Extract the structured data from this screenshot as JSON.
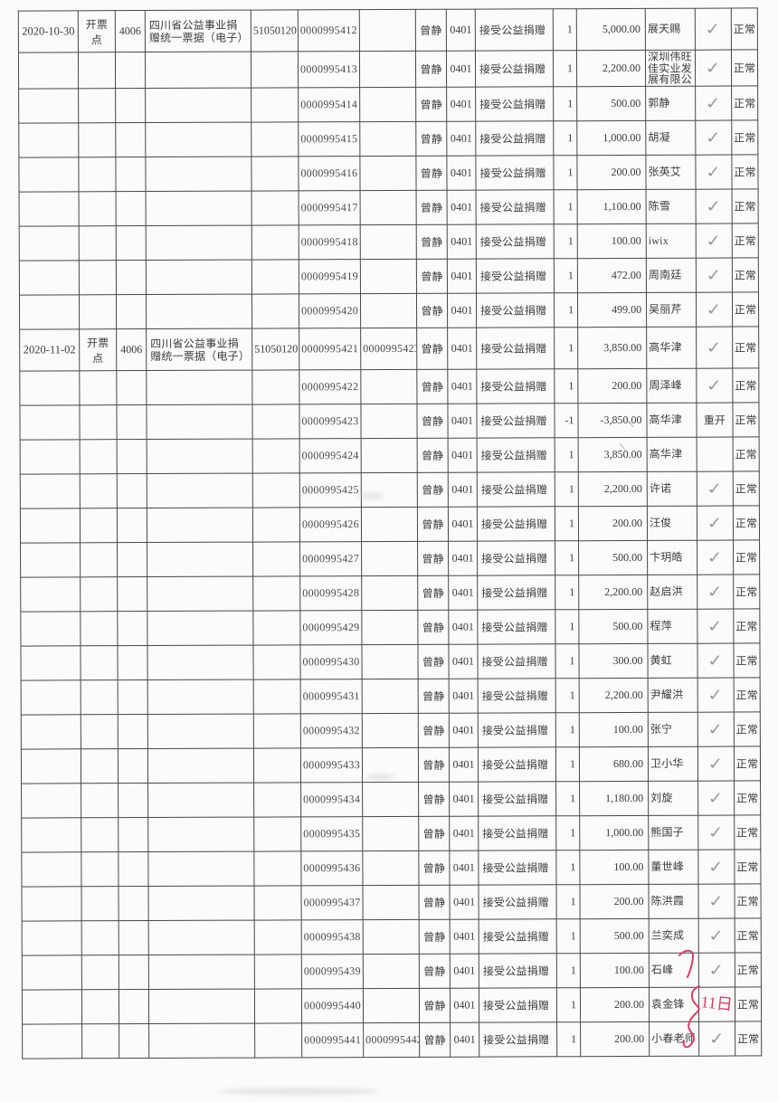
{
  "document": {
    "kind": "scanned invoice issuance register (Chinese donation receipts)",
    "status_label": "正常",
    "reopen_label": "重开"
  },
  "colors": {
    "ink": "#3c3c3c",
    "line": "#474747",
    "check": "#9b9b9b",
    "red": "#d23f68",
    "paper": "#fbfbf9"
  },
  "icons": {
    "check": "✓"
  },
  "annotations": {
    "red_note": "11日"
  },
  "table": {
    "rows": [
      {
        "date": "2020-10-30",
        "point": "开票点",
        "code": "4006",
        "desc": "四川省公益事业捐赠统一票据（电子）",
        "book": "51050120",
        "inv": "0000995412",
        "inv2": "",
        "op": "曾静",
        "icode": "0401",
        "item": "接受公益捐赠",
        "qty": "1",
        "amount": "5,000.00",
        "payer": "展天赐",
        "confirm": "check",
        "status": "正常"
      },
      {
        "date": "",
        "point": "",
        "code": "",
        "desc": "",
        "book": "",
        "inv": "0000995413",
        "inv2": "",
        "op": "曾静",
        "icode": "0401",
        "item": "接受公益捐赠",
        "qty": "1",
        "amount": "2,200.00",
        "payer": "深圳伟旺佳实业发展有限公",
        "confirm": "check",
        "status": "正常"
      },
      {
        "date": "",
        "point": "",
        "code": "",
        "desc": "",
        "book": "",
        "inv": "0000995414",
        "inv2": "",
        "op": "曾静",
        "icode": "0401",
        "item": "接受公益捐赠",
        "qty": "1",
        "amount": "500.00",
        "payer": "郭静",
        "confirm": "check",
        "status": "正常"
      },
      {
        "date": "",
        "point": "",
        "code": "",
        "desc": "",
        "book": "",
        "inv": "0000995415",
        "inv2": "",
        "op": "曾静",
        "icode": "0401",
        "item": "接受公益捐赠",
        "qty": "1",
        "amount": "1,000.00",
        "payer": "胡凝",
        "confirm": "check",
        "status": "正常"
      },
      {
        "date": "",
        "point": "",
        "code": "",
        "desc": "",
        "book": "",
        "inv": "0000995416",
        "inv2": "",
        "op": "曾静",
        "icode": "0401",
        "item": "接受公益捐赠",
        "qty": "1",
        "amount": "200.00",
        "payer": "张英艾",
        "confirm": "check",
        "status": "正常"
      },
      {
        "date": "",
        "point": "",
        "code": "",
        "desc": "",
        "book": "",
        "inv": "0000995417",
        "inv2": "",
        "op": "曾静",
        "icode": "0401",
        "item": "接受公益捐赠",
        "qty": "1",
        "amount": "1,100.00",
        "payer": "陈雪",
        "confirm": "check",
        "status": "正常"
      },
      {
        "date": "",
        "point": "",
        "code": "",
        "desc": "",
        "book": "",
        "inv": "0000995418",
        "inv2": "",
        "op": "曾静",
        "icode": "0401",
        "item": "接受公益捐赠",
        "qty": "1",
        "amount": "100.00",
        "payer": "iwix",
        "confirm": "check",
        "status": "正常"
      },
      {
        "date": "",
        "point": "",
        "code": "",
        "desc": "",
        "book": "",
        "inv": "0000995419",
        "inv2": "",
        "op": "曾静",
        "icode": "0401",
        "item": "接受公益捐赠",
        "qty": "1",
        "amount": "472.00",
        "payer": "周南廷",
        "confirm": "check",
        "status": "正常"
      },
      {
        "date": "",
        "point": "",
        "code": "",
        "desc": "",
        "book": "",
        "inv": "0000995420",
        "inv2": "",
        "op": "曾静",
        "icode": "0401",
        "item": "接受公益捐赠",
        "qty": "1",
        "amount": "499.00",
        "payer": "吴丽芹",
        "confirm": "check",
        "status": "正常"
      },
      {
        "date": "2020-11-02",
        "point": "开票点",
        "code": "4006",
        "desc": "四川省公益事业捐赠统一票据（电子）",
        "book": "51050120",
        "inv": "0000995421",
        "inv2": "0000995423",
        "op": "曾静",
        "icode": "0401",
        "item": "接受公益捐赠",
        "qty": "1",
        "amount": "3,850.00",
        "payer": "高华津",
        "confirm": "check",
        "status": "正常"
      },
      {
        "date": "",
        "point": "",
        "code": "",
        "desc": "",
        "book": "",
        "inv": "0000995422",
        "inv2": "",
        "op": "曾静",
        "icode": "0401",
        "item": "接受公益捐赠",
        "qty": "1",
        "amount": "200.00",
        "payer": "周泽峰",
        "confirm": "check",
        "status": "正常"
      },
      {
        "date": "",
        "point": "",
        "code": "",
        "desc": "",
        "book": "",
        "inv": "0000995423",
        "inv2": "",
        "op": "曾静",
        "icode": "0401",
        "item": "接受公益捐赠",
        "qty": "-1",
        "amount": "-3,850.00",
        "payer": "高华津",
        "confirm": "重开",
        "status": "正常"
      },
      {
        "date": "",
        "point": "",
        "code": "",
        "desc": "",
        "book": "",
        "inv": "0000995424",
        "inv2": "",
        "op": "曾静",
        "icode": "0401",
        "item": "接受公益捐赠",
        "qty": "1",
        "amount": "3,850.00",
        "payer": "高华津",
        "confirm": "",
        "status": "正常"
      },
      {
        "date": "",
        "point": "",
        "code": "",
        "desc": "",
        "book": "",
        "inv": "0000995425",
        "inv2": "",
        "op": "曾静",
        "icode": "0401",
        "item": "接受公益捐赠",
        "qty": "1",
        "amount": "2,200.00",
        "payer": "许诺",
        "confirm": "check",
        "status": "正常"
      },
      {
        "date": "",
        "point": "",
        "code": "",
        "desc": "",
        "book": "",
        "inv": "0000995426",
        "inv2": "",
        "op": "曾静",
        "icode": "0401",
        "item": "接受公益捐赠",
        "qty": "1",
        "amount": "200.00",
        "payer": "汪俊",
        "confirm": "check",
        "status": "正常"
      },
      {
        "date": "",
        "point": "",
        "code": "",
        "desc": "",
        "book": "",
        "inv": "0000995427",
        "inv2": "",
        "op": "曾静",
        "icode": "0401",
        "item": "接受公益捐赠",
        "qty": "1",
        "amount": "500.00",
        "payer": "卞玥皓",
        "confirm": "check",
        "status": "正常"
      },
      {
        "date": "",
        "point": "",
        "code": "",
        "desc": "",
        "book": "",
        "inv": "0000995428",
        "inv2": "",
        "op": "曾静",
        "icode": "0401",
        "item": "接受公益捐赠",
        "qty": "1",
        "amount": "2,200.00",
        "payer": "赵启洪",
        "confirm": "check",
        "status": "正常"
      },
      {
        "date": "",
        "point": "",
        "code": "",
        "desc": "",
        "book": "",
        "inv": "0000995429",
        "inv2": "",
        "op": "曾静",
        "icode": "0401",
        "item": "接受公益捐赠",
        "qty": "1",
        "amount": "500.00",
        "payer": "程萍",
        "confirm": "check",
        "status": "正常"
      },
      {
        "date": "",
        "point": "",
        "code": "",
        "desc": "",
        "book": "",
        "inv": "0000995430",
        "inv2": "",
        "op": "曾静",
        "icode": "0401",
        "item": "接受公益捐赠",
        "qty": "1",
        "amount": "300.00",
        "payer": "黄虹",
        "confirm": "check",
        "status": "正常"
      },
      {
        "date": "",
        "point": "",
        "code": "",
        "desc": "",
        "book": "",
        "inv": "0000995431",
        "inv2": "",
        "op": "曾静",
        "icode": "0401",
        "item": "接受公益捐赠",
        "qty": "1",
        "amount": "2,200.00",
        "payer": "尹耀洪",
        "confirm": "check",
        "status": "正常"
      },
      {
        "date": "",
        "point": "",
        "code": "",
        "desc": "",
        "book": "",
        "inv": "0000995432",
        "inv2": "",
        "op": "曾静",
        "icode": "0401",
        "item": "接受公益捐赠",
        "qty": "1",
        "amount": "100.00",
        "payer": "张宁",
        "confirm": "check",
        "status": "正常"
      },
      {
        "date": "",
        "point": "",
        "code": "",
        "desc": "",
        "book": "",
        "inv": "0000995433",
        "inv2": "",
        "op": "曾静",
        "icode": "0401",
        "item": "接受公益捐赠",
        "qty": "1",
        "amount": "680.00",
        "payer": "卫小华",
        "confirm": "check",
        "status": "正常"
      },
      {
        "date": "",
        "point": "",
        "code": "",
        "desc": "",
        "book": "",
        "inv": "0000995434",
        "inv2": "",
        "op": "曾静",
        "icode": "0401",
        "item": "接受公益捐赠",
        "qty": "1",
        "amount": "1,180.00",
        "payer": "刘旋",
        "confirm": "check",
        "status": "正常"
      },
      {
        "date": "",
        "point": "",
        "code": "",
        "desc": "",
        "book": "",
        "inv": "0000995435",
        "inv2": "",
        "op": "曾静",
        "icode": "0401",
        "item": "接受公益捐赠",
        "qty": "1",
        "amount": "1,000.00",
        "payer": "熊国子",
        "confirm": "check",
        "status": "正常"
      },
      {
        "date": "",
        "point": "",
        "code": "",
        "desc": "",
        "book": "",
        "inv": "0000995436",
        "inv2": "",
        "op": "曾静",
        "icode": "0401",
        "item": "接受公益捐赠",
        "qty": "1",
        "amount": "100.00",
        "payer": "董世峰",
        "confirm": "check",
        "status": "正常"
      },
      {
        "date": "",
        "point": "",
        "code": "",
        "desc": "",
        "book": "",
        "inv": "0000995437",
        "inv2": "",
        "op": "曾静",
        "icode": "0401",
        "item": "接受公益捐赠",
        "qty": "1",
        "amount": "200.00",
        "payer": "陈洪霞",
        "confirm": "check",
        "status": "正常"
      },
      {
        "date": "",
        "point": "",
        "code": "",
        "desc": "",
        "book": "",
        "inv": "0000995438",
        "inv2": "",
        "op": "曾静",
        "icode": "0401",
        "item": "接受公益捐赠",
        "qty": "1",
        "amount": "500.00",
        "payer": "兰奕成",
        "confirm": "check",
        "status": "正常"
      },
      {
        "date": "",
        "point": "",
        "code": "",
        "desc": "",
        "book": "",
        "inv": "0000995439",
        "inv2": "",
        "op": "曾静",
        "icode": "0401",
        "item": "接受公益捐赠",
        "qty": "1",
        "amount": "100.00",
        "payer": "石峰",
        "confirm": "check",
        "status": "正常"
      },
      {
        "date": "",
        "point": "",
        "code": "",
        "desc": "",
        "book": "",
        "inv": "0000995440",
        "inv2": "",
        "op": "曾静",
        "icode": "0401",
        "item": "接受公益捐赠",
        "qty": "1",
        "amount": "200.00",
        "payer": "袁金锋",
        "confirm": "",
        "status": "正常"
      },
      {
        "date": "",
        "point": "",
        "code": "",
        "desc": "",
        "book": "",
        "inv": "0000995441",
        "inv2": "0000995442",
        "op": "曾静",
        "icode": "0401",
        "item": "接受公益捐赠",
        "qty": "1",
        "amount": "200.00",
        "payer": "小春老师",
        "confirm": "check",
        "status": "正常"
      }
    ]
  }
}
